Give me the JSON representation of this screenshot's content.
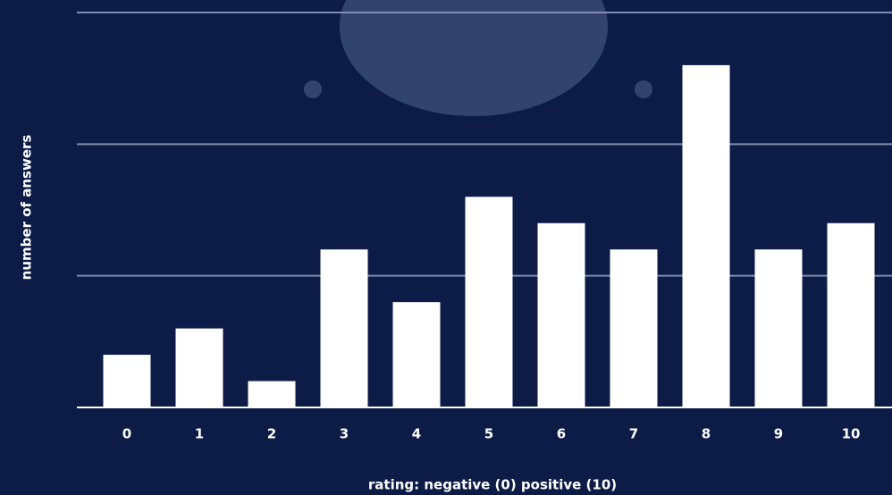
{
  "chart_data": {
    "type": "bar",
    "x_label": "rating: negative (0) positive (10)",
    "y_label": "number of answers",
    "categories": [
      "0",
      "1",
      "2",
      "3",
      "4",
      "5",
      "6",
      "7",
      "8",
      "9",
      "10"
    ],
    "values": [
      4,
      6,
      2,
      12,
      8,
      16,
      14,
      12,
      26,
      12,
      14
    ],
    "color": "#ffffff",
    "ylim": [
      0,
      30
    ],
    "yticks": [
      0,
      10,
      20,
      30
    ],
    "grid": true
  }
}
